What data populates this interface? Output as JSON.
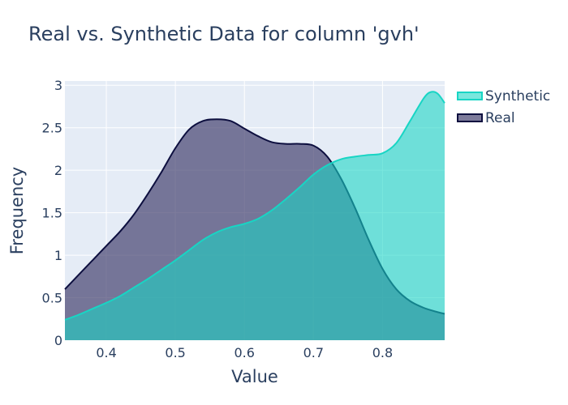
{
  "chart_data": {
    "type": "area",
    "title": "Real vs. Synthetic Data for column 'gvh'",
    "xlabel": "Value",
    "ylabel": "Frequency",
    "xlim": [
      0.34,
      0.89
    ],
    "ylim": [
      0,
      3.05
    ],
    "x_ticks": [
      0.4,
      0.5,
      0.6,
      0.7,
      0.8
    ],
    "x_tick_labels": [
      "0.4",
      "0.5",
      "0.6",
      "0.7",
      "0.8"
    ],
    "y_ticks": [
      0,
      0.5,
      1,
      1.5,
      2,
      2.5,
      3
    ],
    "y_tick_labels": [
      "0",
      "0.5",
      "1",
      "1.5",
      "2",
      "2.5",
      "3"
    ],
    "grid": true,
    "legend_position": "top-right",
    "series": [
      {
        "name": "Synthetic",
        "color": "#18d5c4",
        "fill": "rgba(24,213,196,0.58)",
        "x": [
          0.34,
          0.36,
          0.38,
          0.4,
          0.42,
          0.44,
          0.46,
          0.48,
          0.5,
          0.52,
          0.54,
          0.56,
          0.58,
          0.6,
          0.62,
          0.64,
          0.66,
          0.68,
          0.7,
          0.72,
          0.74,
          0.76,
          0.78,
          0.8,
          0.82,
          0.84,
          0.86,
          0.87,
          0.88,
          0.89
        ],
        "y": [
          0.24,
          0.3,
          0.37,
          0.44,
          0.52,
          0.62,
          0.72,
          0.83,
          0.94,
          1.06,
          1.18,
          1.27,
          1.33,
          1.37,
          1.43,
          1.53,
          1.66,
          1.8,
          1.95,
          2.06,
          2.13,
          2.16,
          2.18,
          2.2,
          2.32,
          2.58,
          2.85,
          2.92,
          2.9,
          2.79
        ]
      },
      {
        "name": "Real",
        "color": "#0d0f3f",
        "fill": "rgba(63,61,107,0.68)",
        "x": [
          0.34,
          0.36,
          0.38,
          0.4,
          0.42,
          0.44,
          0.46,
          0.48,
          0.5,
          0.52,
          0.54,
          0.56,
          0.58,
          0.6,
          0.62,
          0.64,
          0.66,
          0.68,
          0.7,
          0.72,
          0.74,
          0.76,
          0.78,
          0.8,
          0.82,
          0.84,
          0.86,
          0.88,
          0.89
        ],
        "y": [
          0.6,
          0.77,
          0.94,
          1.11,
          1.28,
          1.48,
          1.72,
          1.98,
          2.26,
          2.48,
          2.58,
          2.6,
          2.58,
          2.49,
          2.4,
          2.33,
          2.31,
          2.31,
          2.29,
          2.16,
          1.9,
          1.56,
          1.18,
          0.84,
          0.6,
          0.46,
          0.38,
          0.33,
          0.31
        ]
      }
    ]
  }
}
